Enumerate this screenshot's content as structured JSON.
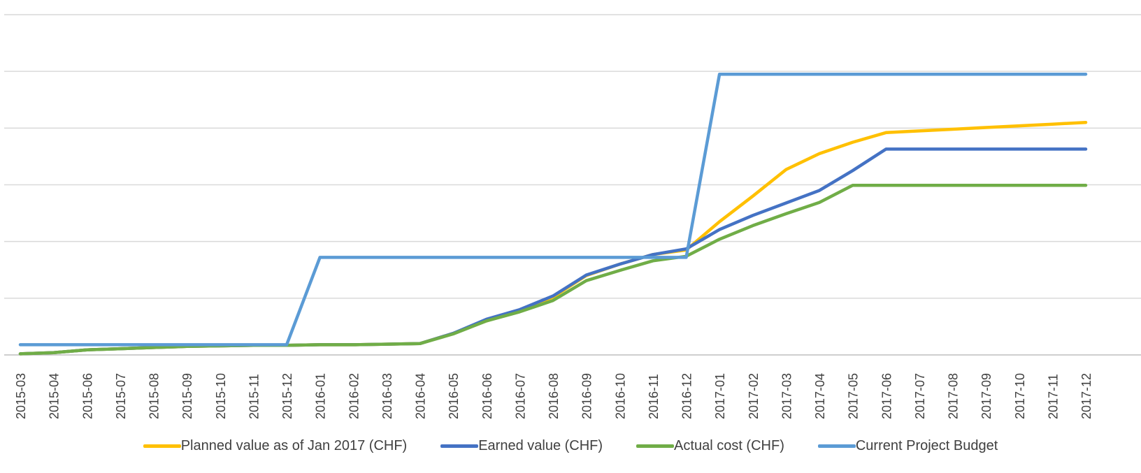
{
  "chart_data": {
    "type": "line",
    "title": "",
    "xlabel": "",
    "ylabel": "",
    "ylim": [
      0,
      6
    ],
    "grid": true,
    "legend_position": "bottom",
    "categories": [
      "2015-03",
      "2015-04",
      "2015-06",
      "2015-07",
      "2015-08",
      "2015-09",
      "2015-10",
      "2015-11",
      "2015-12",
      "2016-01",
      "2016-02",
      "2016-03",
      "2016-04",
      "2016-05",
      "2016-06",
      "2016-07",
      "2016-08",
      "2016-09",
      "2016-10",
      "2016-11",
      "2016-12",
      "2017-01",
      "2017-02",
      "2017-03",
      "2017-04",
      "2017-05",
      "2017-06",
      "2017-07",
      "2017-08",
      "2017-09",
      "2017-10",
      "2017-11",
      "2017-12"
    ],
    "series": [
      {
        "name": "Planned value as of Jan 2017 (CHF)",
        "color": "#FFC000",
        "values": [
          0.02,
          0.04,
          0.09,
          0.11,
          0.13,
          0.15,
          0.16,
          0.17,
          0.17,
          0.18,
          0.18,
          0.19,
          0.2,
          0.38,
          0.6,
          0.78,
          1.02,
          1.4,
          1.6,
          1.77,
          1.85,
          2.35,
          2.8,
          3.27,
          3.55,
          3.75,
          3.92,
          3.95,
          3.98,
          4.01,
          4.04,
          4.07,
          4.1
        ]
      },
      {
        "name": "Earned value (CHF)",
        "color": "#4472C4",
        "values": [
          0.02,
          0.04,
          0.09,
          0.11,
          0.13,
          0.15,
          0.16,
          0.17,
          0.17,
          0.18,
          0.18,
          0.19,
          0.2,
          0.38,
          0.63,
          0.8,
          1.04,
          1.41,
          1.6,
          1.77,
          1.87,
          2.21,
          2.46,
          2.68,
          2.9,
          3.25,
          3.63,
          3.63,
          3.63,
          3.63,
          3.63,
          3.63,
          3.63
        ]
      },
      {
        "name": "Actual cost (CHF)",
        "color": "#70AD47",
        "values": [
          0.02,
          0.04,
          0.09,
          0.11,
          0.13,
          0.15,
          0.16,
          0.17,
          0.17,
          0.18,
          0.18,
          0.19,
          0.2,
          0.37,
          0.6,
          0.76,
          0.96,
          1.31,
          1.49,
          1.66,
          1.74,
          2.04,
          2.28,
          2.49,
          2.69,
          2.99,
          2.99,
          2.99,
          2.99,
          2.99,
          2.99,
          2.99,
          2.99
        ]
      },
      {
        "name": "Current Project Budget",
        "color": "#5B9BD5",
        "values": [
          0.18,
          0.18,
          0.18,
          0.18,
          0.18,
          0.18,
          0.18,
          0.18,
          0.18,
          1.72,
          1.72,
          1.72,
          1.72,
          1.72,
          1.72,
          1.72,
          1.72,
          1.72,
          1.72,
          1.72,
          1.72,
          4.95,
          4.95,
          4.95,
          4.95,
          4.95,
          4.95,
          4.95,
          4.95,
          4.95,
          4.95,
          4.95,
          4.95
        ]
      }
    ]
  }
}
